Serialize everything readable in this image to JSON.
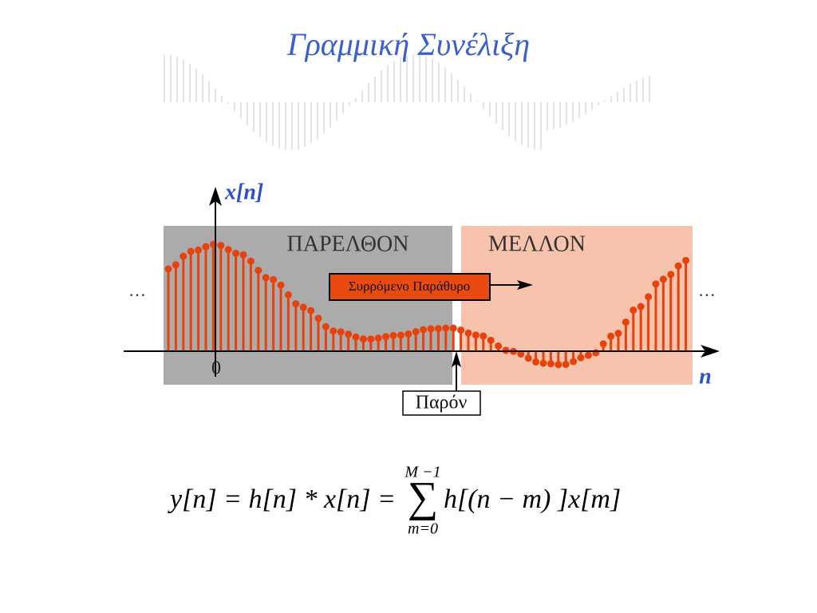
{
  "title": "Γραμμική Συνέλιξη",
  "diagram": {
    "y_label": "x[n]",
    "past_label": "ΠΑΡΕΛΘΟΝ",
    "future_label": "ΜΕΛΛΟΝ",
    "window_label": "Συρρόμενο Παράθυρο",
    "ellipsis_left": "…",
    "ellipsis_right": "…",
    "origin_label": "0",
    "x_label": "n",
    "present_label": "Παρόν"
  },
  "equation": {
    "lhs": "y[n] = h[n] * x[n] =",
    "sum_upper": "M −1",
    "sum_symbol": "∑",
    "sum_lower": "m=0",
    "rhs": "h[(n − m) ]x[m]"
  }
}
